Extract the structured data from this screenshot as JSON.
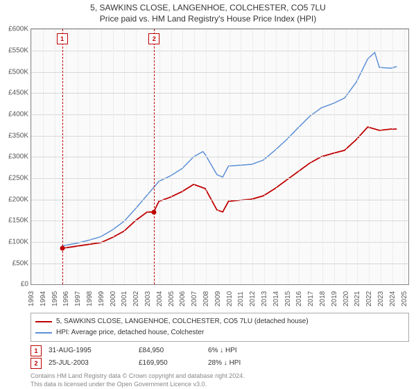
{
  "title": "5, SAWKINS CLOSE, LANGENHOE, COLCHESTER, CO5 7LU",
  "subtitle": "Price paid vs. HM Land Registry's House Price Index (HPI)",
  "chart": {
    "type": "line",
    "background_color": "#fafafa",
    "grid_color": "#d8d8d8",
    "axis_color": "#888888",
    "label_color": "#555555",
    "label_fontsize": 10,
    "x_years": [
      1993,
      1994,
      1995,
      1996,
      1997,
      1998,
      1999,
      2000,
      2001,
      2002,
      2003,
      2004,
      2005,
      2006,
      2007,
      2008,
      2009,
      2010,
      2011,
      2012,
      2013,
      2014,
      2015,
      2016,
      2017,
      2018,
      2019,
      2020,
      2021,
      2022,
      2023,
      2024,
      2025
    ],
    "xlim_start": 1993,
    "xlim_end": 2025.5,
    "ylim": [
      0,
      600000
    ],
    "ytick_step": 50000,
    "yticks": [
      "£0",
      "£50K",
      "£100K",
      "£150K",
      "£200K",
      "£250K",
      "£300K",
      "£350K",
      "£400K",
      "£450K",
      "£500K",
      "£550K",
      "£600K"
    ],
    "series": [
      {
        "name": "5, SAWKINS CLOSE, LANGENHOE, COLCHESTER, CO5 7LU (detached house)",
        "color": "#c00000",
        "line_width": 1.8,
        "points": [
          [
            1995.66,
            84950
          ],
          [
            1996,
            86000
          ],
          [
            1997,
            90000
          ],
          [
            1998,
            94000
          ],
          [
            1999,
            98000
          ],
          [
            2000,
            110000
          ],
          [
            2001,
            125000
          ],
          [
            2002,
            150000
          ],
          [
            2003,
            170000
          ],
          [
            2003.56,
            169950
          ],
          [
            2004,
            195000
          ],
          [
            2005,
            205000
          ],
          [
            2006,
            218000
          ],
          [
            2007,
            235000
          ],
          [
            2008,
            225000
          ],
          [
            2009,
            175000
          ],
          [
            2009.5,
            170000
          ],
          [
            2010,
            195000
          ],
          [
            2011,
            198000
          ],
          [
            2012,
            200000
          ],
          [
            2013,
            208000
          ],
          [
            2014,
            225000
          ],
          [
            2015,
            245000
          ],
          [
            2016,
            265000
          ],
          [
            2017,
            285000
          ],
          [
            2018,
            300000
          ],
          [
            2019,
            308000
          ],
          [
            2020,
            315000
          ],
          [
            2021,
            340000
          ],
          [
            2022,
            370000
          ],
          [
            2023,
            362000
          ],
          [
            2024,
            365000
          ],
          [
            2024.5,
            365000
          ]
        ]
      },
      {
        "name": "HPI: Average price, detached house, Colchester",
        "color": "#5b8fd6",
        "line_width": 1.5,
        "points": [
          [
            1995.66,
            90000
          ],
          [
            1996,
            92000
          ],
          [
            1997,
            97000
          ],
          [
            1998,
            104000
          ],
          [
            1999,
            112000
          ],
          [
            2000,
            128000
          ],
          [
            2001,
            148000
          ],
          [
            2002,
            178000
          ],
          [
            2003,
            210000
          ],
          [
            2004,
            242000
          ],
          [
            2005,
            255000
          ],
          [
            2006,
            272000
          ],
          [
            2007,
            300000
          ],
          [
            2007.8,
            312000
          ],
          [
            2008,
            305000
          ],
          [
            2009,
            258000
          ],
          [
            2009.5,
            252000
          ],
          [
            2010,
            278000
          ],
          [
            2011,
            280000
          ],
          [
            2012,
            282000
          ],
          [
            2013,
            292000
          ],
          [
            2014,
            315000
          ],
          [
            2015,
            340000
          ],
          [
            2016,
            368000
          ],
          [
            2017,
            395000
          ],
          [
            2018,
            415000
          ],
          [
            2019,
            425000
          ],
          [
            2020,
            438000
          ],
          [
            2021,
            475000
          ],
          [
            2022,
            530000
          ],
          [
            2022.6,
            545000
          ],
          [
            2023,
            510000
          ],
          [
            2024,
            508000
          ],
          [
            2024.5,
            512000
          ]
        ]
      }
    ],
    "markers": [
      {
        "num": "1",
        "x": 1995.66,
        "y": 84950,
        "date": "31-AUG-1995",
        "price": "£84,950",
        "pct": "6% ↓ HPI"
      },
      {
        "num": "2",
        "x": 2003.56,
        "y": 169950,
        "date": "25-JUL-2003",
        "price": "£169,950",
        "pct": "28% ↓ HPI"
      }
    ],
    "marker_line_color": "#c00000",
    "marker_dot_color": "#c00000"
  },
  "legend": {
    "border_color": "#aaaaaa",
    "fontsize": 10
  },
  "footer": {
    "line1": "Contains HM Land Registry data © Crown copyright and database right 2024.",
    "line2": "This data is licensed under the Open Government Licence v3.0."
  }
}
